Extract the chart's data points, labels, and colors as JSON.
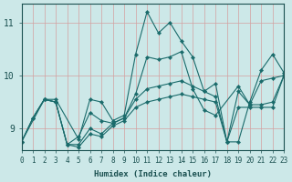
{
  "xlabel": "Humidex (Indice chaleur)",
  "bg_color": "#cce8e8",
  "grid_color": "#d4a0a0",
  "line_color": "#1a6b6b",
  "xlim": [
    0,
    23
  ],
  "ylim": [
    8.6,
    11.35
  ],
  "yticks": [
    9,
    10,
    11
  ],
  "xticks": [
    0,
    1,
    2,
    3,
    4,
    5,
    6,
    7,
    8,
    9,
    10,
    11,
    12,
    13,
    14,
    15,
    16,
    17,
    18,
    19,
    20,
    21,
    22,
    23
  ],
  "lines": [
    {
      "x": [
        0,
        1,
        2,
        3,
        5,
        6,
        7,
        8,
        9,
        10,
        11,
        12,
        13,
        14,
        15,
        16,
        17,
        18,
        19,
        20,
        21,
        22,
        23
      ],
      "y": [
        8.75,
        9.2,
        9.55,
        9.55,
        8.8,
        9.55,
        9.5,
        9.15,
        9.25,
        10.4,
        11.2,
        10.8,
        11.0,
        10.65,
        10.35,
        9.7,
        9.85,
        8.75,
        8.75,
        9.5,
        10.1,
        10.4,
        10.05
      ]
    },
    {
      "x": [
        0,
        1,
        2,
        3,
        4,
        5,
        6,
        7,
        8,
        9,
        10,
        11,
        12,
        13,
        14,
        15,
        16,
        17,
        19,
        20,
        21,
        22,
        23
      ],
      "y": [
        8.75,
        9.2,
        9.55,
        9.5,
        8.7,
        8.85,
        9.3,
        9.15,
        9.1,
        9.2,
        9.65,
        10.35,
        10.3,
        10.35,
        10.45,
        9.75,
        9.35,
        9.25,
        9.8,
        9.45,
        9.9,
        9.95,
        10.0
      ]
    },
    {
      "x": [
        0,
        2,
        3,
        4,
        5,
        6,
        7,
        8,
        9,
        10,
        11,
        12,
        13,
        14,
        15,
        16,
        17,
        18,
        19,
        20,
        21,
        22,
        23
      ],
      "y": [
        8.75,
        9.55,
        9.5,
        8.7,
        8.7,
        9.0,
        8.9,
        9.1,
        9.2,
        9.55,
        9.75,
        9.8,
        9.85,
        9.9,
        9.8,
        9.7,
        9.6,
        8.75,
        9.7,
        9.45,
        9.45,
        9.5,
        10.0
      ]
    },
    {
      "x": [
        1,
        2,
        3,
        4,
        5,
        6,
        7,
        8,
        9,
        10,
        11,
        12,
        13,
        14,
        15,
        16,
        17,
        18,
        19,
        20,
        21,
        22,
        23
      ],
      "y": [
        9.2,
        9.55,
        9.5,
        8.7,
        8.65,
        8.9,
        8.85,
        9.05,
        9.15,
        9.4,
        9.5,
        9.55,
        9.6,
        9.65,
        9.6,
        9.55,
        9.5,
        8.75,
        9.4,
        9.4,
        9.4,
        9.4,
        10.0
      ]
    }
  ]
}
